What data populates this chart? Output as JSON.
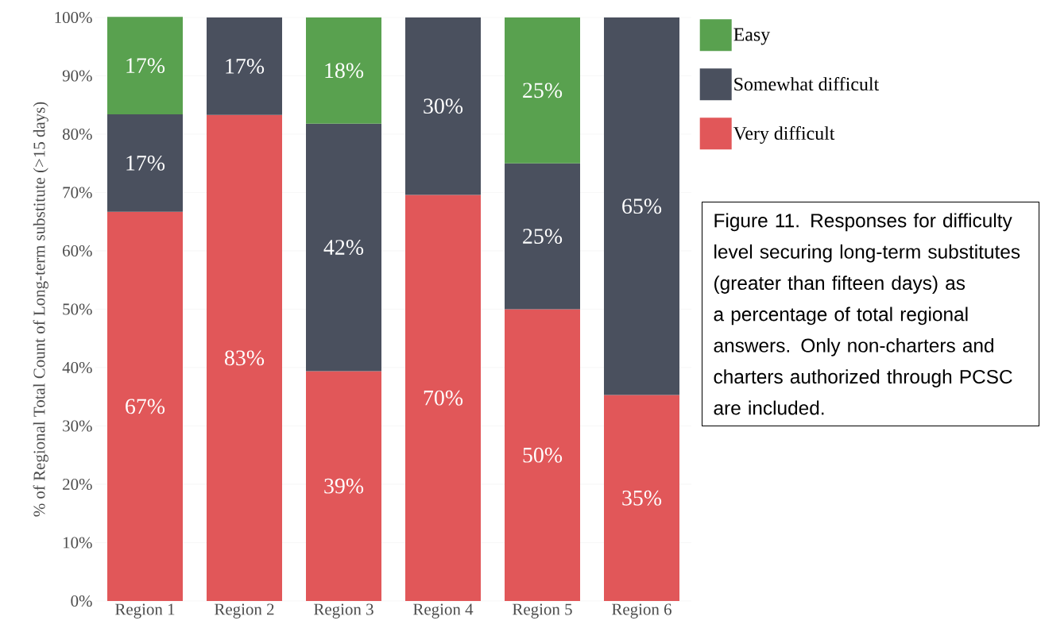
{
  "chart_data": {
    "type": "bar",
    "stacked": true,
    "ylabel": "% of Regional Total Count of Long-term substitute (>15 days)",
    "categories": [
      "Region 1",
      "Region 2",
      "Region 3",
      "Region 4",
      "Region 5",
      "Region 6"
    ],
    "series": [
      {
        "name": "Very difficult",
        "color": "#e15759",
        "values": [
          66.7,
          83.3,
          39.4,
          69.6,
          50,
          35.3
        ],
        "value_labels": [
          "67%",
          "83%",
          "39%",
          "70%",
          "50%",
          "35%"
        ]
      },
      {
        "name": "Somewhat difficult",
        "color": "#4a505e",
        "values": [
          16.7,
          16.7,
          42.4,
          30.4,
          25,
          64.7
        ],
        "value_labels": [
          "17%",
          "17%",
          "42%",
          "30%",
          "25%",
          "65%"
        ]
      },
      {
        "name": "Easy",
        "color": "#59a14f",
        "values": [
          16.7,
          null,
          18.2,
          null,
          25,
          null
        ],
        "value_labels": [
          "17%",
          null,
          "18%",
          null,
          "25%",
          null
        ]
      }
    ],
    "ylim": [
      0,
      100
    ],
    "yticks": [
      {
        "value": 0,
        "label": "0%"
      },
      {
        "value": 10,
        "label": "10%"
      },
      {
        "value": 20,
        "label": "20%"
      },
      {
        "value": 30,
        "label": "30%"
      },
      {
        "value": 40,
        "label": "40%"
      },
      {
        "value": 50,
        "label": "50%"
      },
      {
        "value": 60,
        "label": "60%"
      },
      {
        "value": 70,
        "label": "70%"
      },
      {
        "value": 80,
        "label": "80%"
      },
      {
        "value": 90,
        "label": "90%"
      },
      {
        "value": 100,
        "label": "100%"
      }
    ],
    "grid": "y",
    "legend": "right",
    "annotations": [
      "Figure 11. Responses for difficulty level securing long-term substitutes (greater than fifteen days) as a percentage of total regional answers. Only non-charters and charters authorized through PCSC are included."
    ]
  }
}
